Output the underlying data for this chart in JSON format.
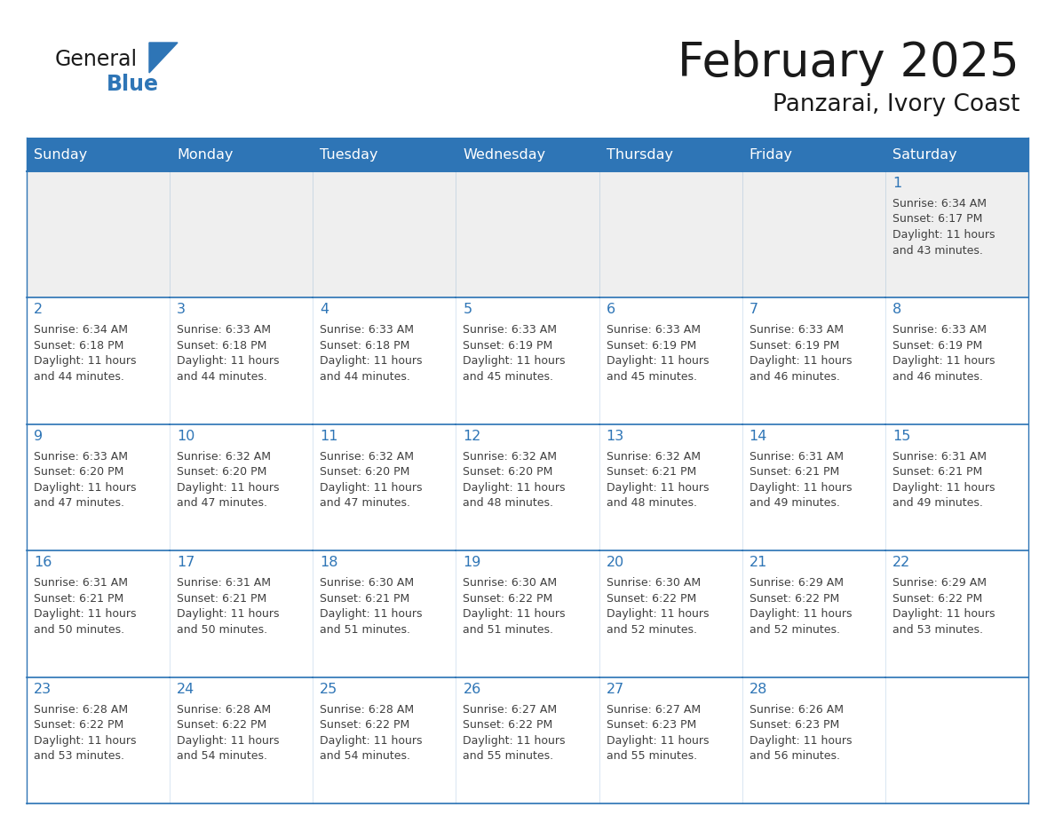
{
  "title": "February 2025",
  "subtitle": "Panzarai, Ivory Coast",
  "header_bg": "#2E75B6",
  "header_text_color": "#FFFFFF",
  "cell_border_color": "#2E75B6",
  "day_number_color": "#2E75B6",
  "detail_text_color": "#404040",
  "background_color": "#FFFFFF",
  "row1_bg": "#EFEFEF",
  "days_of_week": [
    "Sunday",
    "Monday",
    "Tuesday",
    "Wednesday",
    "Thursday",
    "Friday",
    "Saturday"
  ],
  "logo_general_color": "#1a1a1a",
  "logo_blue_color": "#2E75B6",
  "calendar_data": [
    [
      null,
      null,
      null,
      null,
      null,
      null,
      {
        "day": 1,
        "sunrise": "6:34 AM",
        "sunset": "6:17 PM",
        "daylight": "11 hours and 43 minutes."
      }
    ],
    [
      {
        "day": 2,
        "sunrise": "6:34 AM",
        "sunset": "6:18 PM",
        "daylight": "11 hours and 44 minutes."
      },
      {
        "day": 3,
        "sunrise": "6:33 AM",
        "sunset": "6:18 PM",
        "daylight": "11 hours and 44 minutes."
      },
      {
        "day": 4,
        "sunrise": "6:33 AM",
        "sunset": "6:18 PM",
        "daylight": "11 hours and 44 minutes."
      },
      {
        "day": 5,
        "sunrise": "6:33 AM",
        "sunset": "6:19 PM",
        "daylight": "11 hours and 45 minutes."
      },
      {
        "day": 6,
        "sunrise": "6:33 AM",
        "sunset": "6:19 PM",
        "daylight": "11 hours and 45 minutes."
      },
      {
        "day": 7,
        "sunrise": "6:33 AM",
        "sunset": "6:19 PM",
        "daylight": "11 hours and 46 minutes."
      },
      {
        "day": 8,
        "sunrise": "6:33 AM",
        "sunset": "6:19 PM",
        "daylight": "11 hours and 46 minutes."
      }
    ],
    [
      {
        "day": 9,
        "sunrise": "6:33 AM",
        "sunset": "6:20 PM",
        "daylight": "11 hours and 47 minutes."
      },
      {
        "day": 10,
        "sunrise": "6:32 AM",
        "sunset": "6:20 PM",
        "daylight": "11 hours and 47 minutes."
      },
      {
        "day": 11,
        "sunrise": "6:32 AM",
        "sunset": "6:20 PM",
        "daylight": "11 hours and 47 minutes."
      },
      {
        "day": 12,
        "sunrise": "6:32 AM",
        "sunset": "6:20 PM",
        "daylight": "11 hours and 48 minutes."
      },
      {
        "day": 13,
        "sunrise": "6:32 AM",
        "sunset": "6:21 PM",
        "daylight": "11 hours and 48 minutes."
      },
      {
        "day": 14,
        "sunrise": "6:31 AM",
        "sunset": "6:21 PM",
        "daylight": "11 hours and 49 minutes."
      },
      {
        "day": 15,
        "sunrise": "6:31 AM",
        "sunset": "6:21 PM",
        "daylight": "11 hours and 49 minutes."
      }
    ],
    [
      {
        "day": 16,
        "sunrise": "6:31 AM",
        "sunset": "6:21 PM",
        "daylight": "11 hours and 50 minutes."
      },
      {
        "day": 17,
        "sunrise": "6:31 AM",
        "sunset": "6:21 PM",
        "daylight": "11 hours and 50 minutes."
      },
      {
        "day": 18,
        "sunrise": "6:30 AM",
        "sunset": "6:21 PM",
        "daylight": "11 hours and 51 minutes."
      },
      {
        "day": 19,
        "sunrise": "6:30 AM",
        "sunset": "6:22 PM",
        "daylight": "11 hours and 51 minutes."
      },
      {
        "day": 20,
        "sunrise": "6:30 AM",
        "sunset": "6:22 PM",
        "daylight": "11 hours and 52 minutes."
      },
      {
        "day": 21,
        "sunrise": "6:29 AM",
        "sunset": "6:22 PM",
        "daylight": "11 hours and 52 minutes."
      },
      {
        "day": 22,
        "sunrise": "6:29 AM",
        "sunset": "6:22 PM",
        "daylight": "11 hours and 53 minutes."
      }
    ],
    [
      {
        "day": 23,
        "sunrise": "6:28 AM",
        "sunset": "6:22 PM",
        "daylight": "11 hours and 53 minutes."
      },
      {
        "day": 24,
        "sunrise": "6:28 AM",
        "sunset": "6:22 PM",
        "daylight": "11 hours and 54 minutes."
      },
      {
        "day": 25,
        "sunrise": "6:28 AM",
        "sunset": "6:22 PM",
        "daylight": "11 hours and 54 minutes."
      },
      {
        "day": 26,
        "sunrise": "6:27 AM",
        "sunset": "6:22 PM",
        "daylight": "11 hours and 55 minutes."
      },
      {
        "day": 27,
        "sunrise": "6:27 AM",
        "sunset": "6:23 PM",
        "daylight": "11 hours and 55 minutes."
      },
      {
        "day": 28,
        "sunrise": "6:26 AM",
        "sunset": "6:23 PM",
        "daylight": "11 hours and 56 minutes."
      },
      null
    ]
  ]
}
